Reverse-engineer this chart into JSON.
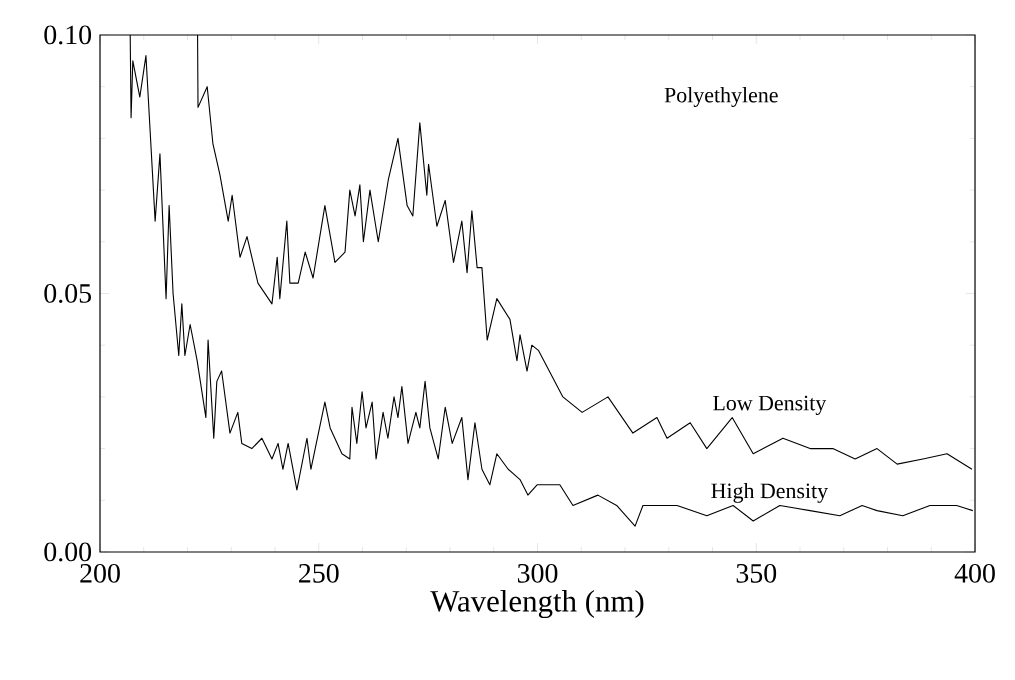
{
  "chart_data": {
    "type": "line",
    "xlabel": "Wavelength (nm)",
    "annotations": [
      "Polyethylene"
    ],
    "xlim": [
      200,
      400
    ],
    "ylim": [
      0,
      0.1
    ],
    "xticks": [
      200,
      250,
      300,
      350,
      400
    ],
    "yticks": [
      {
        "value": 0,
        "label": "0.00"
      },
      {
        "value": 0.05,
        "label": "0.05"
      },
      {
        "value": 0.1,
        "label": "0.10"
      }
    ],
    "grid": false,
    "legend": false,
    "marker": "none",
    "line_style": "solid",
    "series": [
      {
        "name": "Low Density",
        "color": "#000000",
        "x": [
          222.3,
          222.4,
          224.5,
          225.8,
          227.4,
          229.3,
          230.2,
          232,
          233.6,
          236.1,
          239.3,
          240.5,
          241.1,
          242.7,
          243.4,
          245.3,
          246.9,
          248.7,
          251.4,
          253.7,
          256,
          257.1,
          258.3,
          259.4,
          260.2,
          261.7,
          263.6,
          265.9,
          268.1,
          270.2,
          271.5,
          273.1,
          274.7,
          275.1,
          277,
          278.9,
          280.8,
          282.7,
          283.9,
          285,
          286.2,
          287.3,
          288.5,
          290.7,
          293.7,
          295.3,
          296,
          297.6,
          298.7,
          300.2,
          305.8,
          310.2,
          316.1,
          321.8,
          327.3,
          329.6,
          334.9,
          338.7,
          344.5,
          349.3,
          356.1,
          362.3,
          367.5,
          372.6,
          377.6,
          382.2,
          388.1,
          393.6,
          399.3
        ],
        "values": [
          0.1,
          0.086,
          0.09,
          0.079,
          0.073,
          0.064,
          0.069,
          0.057,
          0.061,
          0.052,
          0.048,
          0.057,
          0.049,
          0.064,
          0.052,
          0.052,
          0.058,
          0.053,
          0.067,
          0.056,
          0.058,
          0.07,
          0.065,
          0.071,
          0.06,
          0.07,
          0.06,
          0.072,
          0.08,
          0.067,
          0.065,
          0.083,
          0.069,
          0.075,
          0.063,
          0.068,
          0.056,
          0.064,
          0.054,
          0.066,
          0.055,
          0.055,
          0.041,
          0.049,
          0.045,
          0.037,
          0.042,
          0.035,
          0.04,
          0.039,
          0.03,
          0.027,
          0.03,
          0.023,
          0.026,
          0.022,
          0.025,
          0.02,
          0.026,
          0.019,
          0.022,
          0.02,
          0.02,
          0.018,
          0.02,
          0.017,
          0.018,
          0.019,
          0.016
        ]
      },
      {
        "name": "High Density",
        "color": "#000000",
        "x": [
          206.9,
          207.1,
          207.5,
          209.1,
          210.5,
          212.6,
          213.7,
          215.1,
          215.8,
          216.7,
          218,
          218.7,
          219.4,
          220.6,
          222.2,
          224.2,
          224.7,
          226,
          226.7,
          227.8,
          229.7,
          231.5,
          232.4,
          234.7,
          237,
          239.3,
          240.7,
          241.8,
          243,
          245,
          247.3,
          248.2,
          251.4,
          252.6,
          255.3,
          257.1,
          257.6,
          258.7,
          259.9,
          260.8,
          262.2,
          263.1,
          264.7,
          265.8,
          267.2,
          268.1,
          269,
          270.4,
          272.2,
          273.1,
          274.3,
          275.4,
          277.3,
          278.9,
          280.5,
          282.7,
          284.1,
          285.7,
          287.3,
          289.1,
          290.7,
          293.3,
          296,
          297.8,
          299.9,
          301.3,
          305.1,
          308.1,
          313.8,
          318.1,
          322.3,
          324.1,
          331.9,
          338.7,
          344.7,
          349.3,
          355.4,
          362.3,
          369.1,
          374.2,
          377.6,
          383.5,
          389.7,
          395.8,
          399.5
        ],
        "values": [
          0.1,
          0.084,
          0.095,
          0.088,
          0.096,
          0.064,
          0.077,
          0.049,
          0.067,
          0.05,
          0.038,
          0.048,
          0.038,
          0.044,
          0.037,
          0.026,
          0.041,
          0.022,
          0.033,
          0.035,
          0.023,
          0.027,
          0.021,
          0.02,
          0.022,
          0.018,
          0.021,
          0.016,
          0.021,
          0.012,
          0.022,
          0.016,
          0.029,
          0.024,
          0.019,
          0.018,
          0.028,
          0.021,
          0.031,
          0.024,
          0.029,
          0.018,
          0.027,
          0.022,
          0.03,
          0.026,
          0.032,
          0.021,
          0.027,
          0.024,
          0.033,
          0.024,
          0.018,
          0.028,
          0.021,
          0.026,
          0.014,
          0.025,
          0.016,
          0.013,
          0.019,
          0.016,
          0.014,
          0.011,
          0.013,
          0.013,
          0.013,
          0.009,
          0.011,
          0.009,
          0.005,
          0.009,
          0.009,
          0.007,
          0.009,
          0.006,
          0.009,
          0.008,
          0.007,
          0.009,
          0.008,
          0.007,
          0.009,
          0.009,
          0.008
        ]
      }
    ]
  }
}
